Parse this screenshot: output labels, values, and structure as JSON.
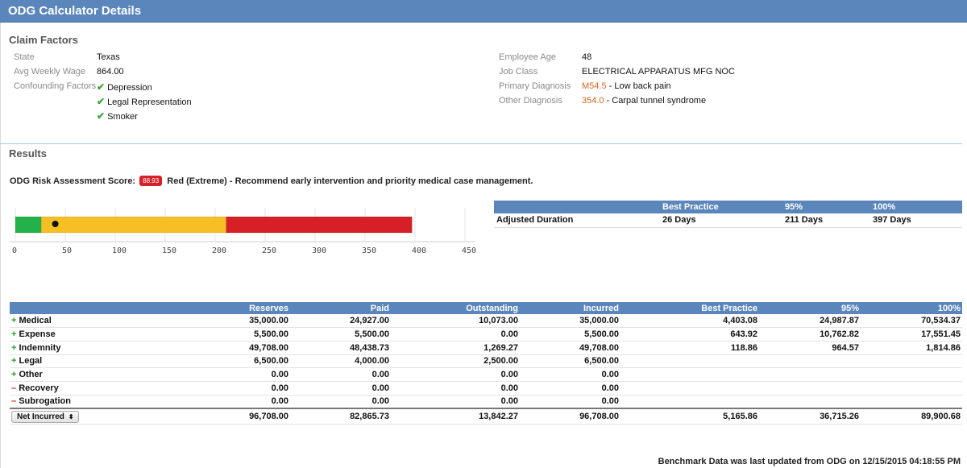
{
  "header": {
    "title": "ODG Calculator Details"
  },
  "claim_factors": {
    "title": "Claim Factors",
    "left": [
      {
        "label": "State",
        "value": "Texas"
      },
      {
        "label": "Avg Weekly Wage",
        "value": "864.00"
      }
    ],
    "confounding_label": "Confounding Factors",
    "confounding": [
      "Depression",
      "Legal Representation",
      "Smoker"
    ],
    "right": [
      {
        "label": "Employee Age",
        "value": "48"
      },
      {
        "label": "Job Class",
        "value": "ELECTRICAL APPARATUS MFG NOC"
      }
    ],
    "primary_diagnosis": {
      "label": "Primary Diagnosis",
      "code": "M54.5",
      "desc": " - Low back pain"
    },
    "other_diagnosis": {
      "label": "Other Diagnosis",
      "code": "354.0",
      "desc": " - Carpal tunnel syndrome"
    }
  },
  "results": {
    "title": "Results",
    "risk_label": "ODG Risk Assessment Score:",
    "risk_score": "88.93",
    "risk_text": "Red (Extreme) - Recommend early intervention and priority medical case management."
  },
  "duration_chart": {
    "axis_ticks": [
      "0",
      "50",
      "100",
      "150",
      "200",
      "250",
      "300",
      "350",
      "400",
      "450"
    ],
    "axis_max": 450,
    "segments": [
      {
        "from": 0,
        "to": 26,
        "color": "#23b14a"
      },
      {
        "from": 26,
        "to": 211,
        "color": "#f6c024"
      },
      {
        "from": 211,
        "to": 397,
        "color": "#d61f26"
      }
    ],
    "marker_value": 40
  },
  "duration_table": {
    "headers": [
      "",
      "Best Practice",
      "95%",
      "100%"
    ],
    "row": [
      "Adjusted Duration",
      "26 Days",
      "211 Days",
      "397 Days"
    ]
  },
  "financials": {
    "headers": [
      "",
      "Reserves",
      "Paid",
      "Outstanding",
      "Incurred",
      "Best Practice",
      "95%",
      "100%"
    ],
    "rows": [
      {
        "sign": "+",
        "name": "Medical",
        "values": [
          "35,000.00",
          "24,927.00",
          "10,073.00",
          "35,000.00",
          "4,403.08",
          "24,987.87",
          "70,534.37"
        ]
      },
      {
        "sign": "+",
        "name": "Expense",
        "values": [
          "5,500.00",
          "5,500.00",
          "0.00",
          "5,500.00",
          "643.92",
          "10,762.82",
          "17,551.45"
        ]
      },
      {
        "sign": "+",
        "name": "Indemnity",
        "values": [
          "49,708.00",
          "48,438.73",
          "1,269.27",
          "49,708.00",
          "118.86",
          "964.57",
          "1,814.86"
        ]
      },
      {
        "sign": "+",
        "name": "Legal",
        "values": [
          "6,500.00",
          "4,000.00",
          "2,500.00",
          "6,500.00",
          "",
          "",
          ""
        ]
      },
      {
        "sign": "+",
        "name": "Other",
        "values": [
          "0.00",
          "0.00",
          "0.00",
          "0.00",
          "",
          "",
          ""
        ]
      },
      {
        "sign": "–",
        "name": "Recovery",
        "values": [
          "0.00",
          "0.00",
          "0.00",
          "0.00",
          "",
          "",
          ""
        ]
      },
      {
        "sign": "–",
        "name": "Subrogation",
        "values": [
          "0.00",
          "0.00",
          "0.00",
          "0.00",
          "",
          "",
          ""
        ]
      }
    ],
    "total": {
      "select_label": "Net Incurred",
      "values": [
        "96,708.00",
        "82,865.73",
        "13,842.27",
        "96,708.00",
        "5,165.86",
        "36,715.26",
        "89,900.68"
      ]
    }
  },
  "footer": {
    "text": "Benchmark Data was last updated from ODG on 12/15/2015 04:18:55 PM"
  },
  "colors": {
    "header_blue": "#5b86bc",
    "risk_red": "#d42128",
    "diagnosis_code": "#d4691e",
    "check_green": "#3aa53a"
  }
}
